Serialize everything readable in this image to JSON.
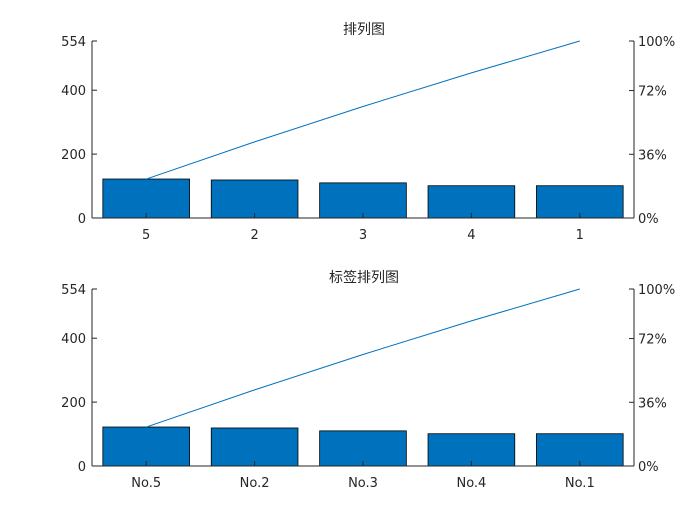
{
  "figure": {
    "background": "#ffffff"
  },
  "chart_data": [
    {
      "type": "bar",
      "title": "排列图",
      "categories": [
        "5",
        "2",
        "3",
        "4",
        "1"
      ],
      "values": [
        122,
        119,
        110,
        101,
        101
      ],
      "cumulative_percent": [
        22,
        43,
        63,
        82,
        100
      ],
      "ylim": [
        0,
        554
      ],
      "y_ticks": [
        0,
        200,
        400,
        554
      ],
      "y2_ticks": [
        "0%",
        "36%",
        "72%",
        "100%"
      ],
      "y2_tick_values": [
        0,
        36,
        72,
        100
      ],
      "bar_color": "#0072BD",
      "line_color": "#0072BD",
      "grid": false
    },
    {
      "type": "bar",
      "title": "标签排列图",
      "categories": [
        "No.5",
        "No.2",
        "No.3",
        "No.4",
        "No.1"
      ],
      "values": [
        122,
        119,
        110,
        101,
        101
      ],
      "cumulative_percent": [
        22,
        43,
        63,
        82,
        100
      ],
      "ylim": [
        0,
        554
      ],
      "y_ticks": [
        0,
        200,
        400,
        554
      ],
      "y2_ticks": [
        "0%",
        "36%",
        "72%",
        "100%"
      ],
      "y2_tick_values": [
        0,
        36,
        72,
        100
      ],
      "bar_color": "#0072BD",
      "line_color": "#0072BD",
      "grid": false
    }
  ]
}
